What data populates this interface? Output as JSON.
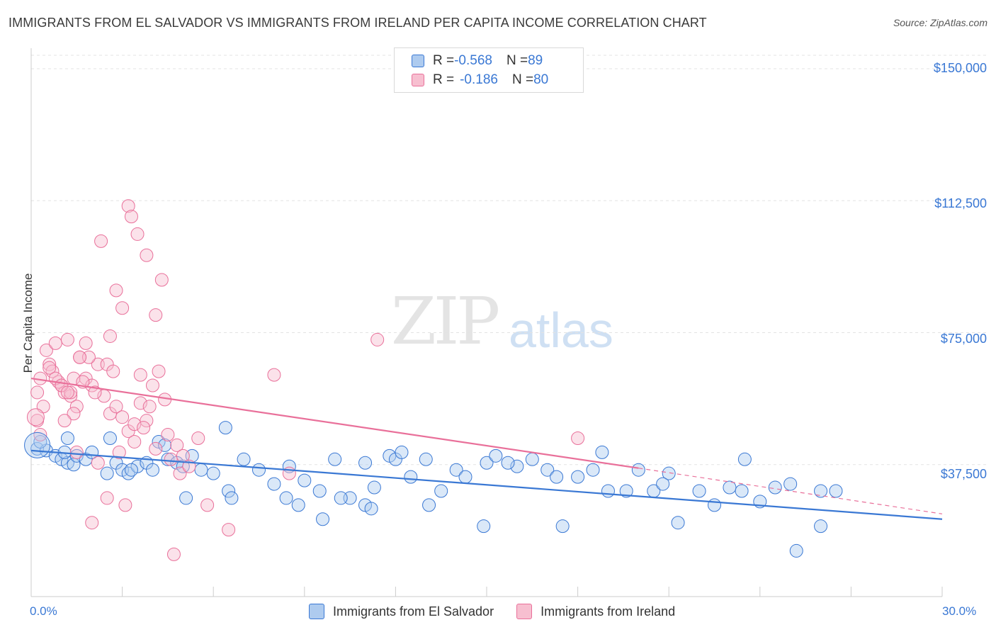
{
  "title": "IMMIGRANTS FROM EL SALVADOR VS IMMIGRANTS FROM IRELAND PER CAPITA INCOME CORRELATION CHART",
  "source": "Source: ZipAtlas.com",
  "watermark": {
    "zip": "ZIP",
    "atlas": "atlas"
  },
  "colors": {
    "blue": "#3a78d4",
    "blue_fill": "#aecbef",
    "pink": "#e9709a",
    "pink_fill": "#f7bfd0",
    "grid": "#e3e3e3"
  },
  "legend": {
    "rows": [
      {
        "r_label": "R = ",
        "r_value": "-0.568",
        "n_label": "N = ",
        "n_value": "89"
      },
      {
        "r_label": "R = ",
        "r_value": "-0.186",
        "n_label": "N = ",
        "n_value": "80"
      }
    ]
  },
  "bottom_legend": [
    "Immigrants from El Salvador",
    "Immigrants from Ireland"
  ],
  "chart_data": {
    "type": "scatter",
    "title": "IMMIGRANTS FROM EL SALVADOR VS IMMIGRANTS FROM IRELAND PER CAPITA INCOME CORRELATION CHART",
    "xlabel": "",
    "ylabel": "Per Capita Income",
    "xlim": [
      0,
      30
    ],
    "ylim": [
      0,
      150000
    ],
    "x_tick_labels": [
      "0.0%",
      "30.0%"
    ],
    "y_ticks": [
      37500,
      75000,
      112500,
      150000
    ],
    "y_tick_labels": [
      "$37,500",
      "$75,000",
      "$112,500",
      "$150,000"
    ],
    "series": [
      {
        "name": "Immigrants from El Salvador",
        "R": -0.568,
        "N": 89,
        "trend": {
          "x": [
            0,
            30
          ],
          "y": [
            41500,
            22000
          ]
        },
        "points": [
          [
            0.2,
            42000
          ],
          [
            0.5,
            41500
          ],
          [
            0.8,
            40000
          ],
          [
            1.0,
            39000
          ],
          [
            1.2,
            38000
          ],
          [
            1.4,
            37500
          ],
          [
            1.5,
            40000
          ],
          [
            1.8,
            39000
          ],
          [
            2.0,
            41000
          ],
          [
            2.5,
            35000
          ],
          [
            2.8,
            38000
          ],
          [
            3.0,
            36000
          ],
          [
            3.2,
            35000
          ],
          [
            3.5,
            37000
          ],
          [
            3.8,
            38000
          ],
          [
            4.0,
            36000
          ],
          [
            4.2,
            44000
          ],
          [
            4.5,
            39000
          ],
          [
            4.8,
            38000
          ],
          [
            5.0,
            37000
          ],
          [
            5.3,
            40000
          ],
          [
            5.6,
            36000
          ],
          [
            6.0,
            35000
          ],
          [
            6.5,
            30000
          ],
          [
            7.0,
            39000
          ],
          [
            7.5,
            36000
          ],
          [
            8.0,
            32000
          ],
          [
            8.5,
            37000
          ],
          [
            9.0,
            33000
          ],
          [
            9.5,
            30000
          ],
          [
            10.0,
            39000
          ],
          [
            10.5,
            28000
          ],
          [
            11.0,
            38000
          ],
          [
            11.3,
            31000
          ],
          [
            11.8,
            40000
          ],
          [
            12.0,
            39000
          ],
          [
            12.2,
            41000
          ],
          [
            13.0,
            39000
          ],
          [
            13.5,
            30000
          ],
          [
            14.0,
            36000
          ],
          [
            14.3,
            34000
          ],
          [
            15.0,
            38000
          ],
          [
            15.3,
            40000
          ],
          [
            16.0,
            37000
          ],
          [
            16.5,
            39000
          ],
          [
            17.0,
            36000
          ],
          [
            18.0,
            34000
          ],
          [
            18.5,
            36000
          ],
          [
            19.0,
            30000
          ],
          [
            20.0,
            36000
          ],
          [
            20.5,
            30000
          ],
          [
            21.0,
            35000
          ],
          [
            22.0,
            30000
          ],
          [
            23.0,
            31000
          ],
          [
            24.0,
            27000
          ],
          [
            25.0,
            32000
          ],
          [
            26.0,
            30000
          ],
          [
            0.3,
            44000
          ],
          [
            1.2,
            45000
          ],
          [
            2.6,
            45000
          ],
          [
            4.4,
            43000
          ],
          [
            6.4,
            48000
          ],
          [
            8.8,
            26000
          ],
          [
            9.6,
            22000
          ],
          [
            11.0,
            26000
          ],
          [
            12.5,
            34000
          ],
          [
            14.9,
            20000
          ],
          [
            15.7,
            38000
          ],
          [
            17.3,
            34000
          ],
          [
            19.6,
            30000
          ],
          [
            20.8,
            32000
          ],
          [
            22.5,
            26000
          ],
          [
            23.5,
            39000
          ],
          [
            24.5,
            31000
          ],
          [
            26.5,
            30000
          ],
          [
            23.4,
            30000
          ],
          [
            1.1,
            41000
          ],
          [
            3.3,
            36000
          ],
          [
            5.1,
            28000
          ],
          [
            6.6,
            28000
          ],
          [
            8.4,
            28000
          ],
          [
            10.2,
            28000
          ],
          [
            11.2,
            25000
          ],
          [
            13.1,
            26000
          ],
          [
            17.5,
            20000
          ],
          [
            18.8,
            41000
          ],
          [
            21.3,
            21000
          ],
          [
            25.2,
            13000
          ],
          [
            26.0,
            20000
          ]
        ]
      },
      {
        "name": "Immigrants from Ireland",
        "R": -0.186,
        "N": 80,
        "trend": {
          "x": [
            0,
            20
          ],
          "y": [
            62000,
            36500
          ]
        },
        "trend_dashed": {
          "x": [
            20,
            30
          ],
          "y": [
            36500,
            23500
          ]
        },
        "points": [
          [
            0.2,
            58000
          ],
          [
            0.3,
            62000
          ],
          [
            0.5,
            70000
          ],
          [
            0.6,
            66000
          ],
          [
            0.7,
            64000
          ],
          [
            0.8,
            72000
          ],
          [
            1.0,
            60000
          ],
          [
            1.1,
            58000
          ],
          [
            1.2,
            73000
          ],
          [
            1.3,
            57000
          ],
          [
            1.4,
            62000
          ],
          [
            1.5,
            54000
          ],
          [
            1.6,
            68000
          ],
          [
            1.8,
            62000
          ],
          [
            2.0,
            60000
          ],
          [
            2.2,
            66000
          ],
          [
            2.4,
            57000
          ],
          [
            2.6,
            52000
          ],
          [
            2.8,
            54000
          ],
          [
            3.0,
            51000
          ],
          [
            3.2,
            47000
          ],
          [
            3.4,
            44000
          ],
          [
            3.6,
            55000
          ],
          [
            3.8,
            50000
          ],
          [
            4.0,
            60000
          ],
          [
            4.2,
            64000
          ],
          [
            4.5,
            46000
          ],
          [
            4.8,
            43000
          ],
          [
            5.0,
            40000
          ],
          [
            5.5,
            45000
          ],
          [
            2.3,
            101000
          ],
          [
            2.8,
            87000
          ],
          [
            3.0,
            82000
          ],
          [
            2.6,
            74000
          ],
          [
            3.2,
            111000
          ],
          [
            3.3,
            108000
          ],
          [
            3.5,
            103000
          ],
          [
            3.8,
            97000
          ],
          [
            4.3,
            90000
          ],
          [
            4.1,
            80000
          ],
          [
            0.4,
            54000
          ],
          [
            1.9,
            68000
          ],
          [
            2.5,
            66000
          ],
          [
            3.6,
            63000
          ],
          [
            1.5,
            41000
          ],
          [
            1.8,
            72000
          ],
          [
            0.9,
            61000
          ],
          [
            1.3,
            58000
          ],
          [
            0.2,
            50000
          ],
          [
            2.9,
            41000
          ],
          [
            4.6,
            39000
          ],
          [
            4.9,
            35000
          ],
          [
            5.8,
            26000
          ],
          [
            6.5,
            19000
          ],
          [
            2.0,
            21000
          ],
          [
            2.5,
            28000
          ],
          [
            3.1,
            26000
          ],
          [
            4.7,
            12000
          ],
          [
            8.0,
            63000
          ],
          [
            8.5,
            35000
          ],
          [
            11.4,
            73000
          ],
          [
            18.0,
            45000
          ],
          [
            0.6,
            65000
          ],
          [
            0.8,
            62000
          ],
          [
            1.0,
            60000
          ],
          [
            1.2,
            58000
          ],
          [
            1.4,
            52000
          ],
          [
            1.6,
            68000
          ],
          [
            1.7,
            61000
          ],
          [
            2.1,
            58000
          ],
          [
            2.7,
            64000
          ],
          [
            3.4,
            49000
          ],
          [
            3.9,
            54000
          ],
          [
            4.4,
            56000
          ],
          [
            5.2,
            37000
          ],
          [
            0.3,
            46000
          ],
          [
            1.1,
            50000
          ],
          [
            2.2,
            38000
          ],
          [
            3.7,
            48000
          ],
          [
            4.1,
            42000
          ]
        ]
      }
    ]
  }
}
